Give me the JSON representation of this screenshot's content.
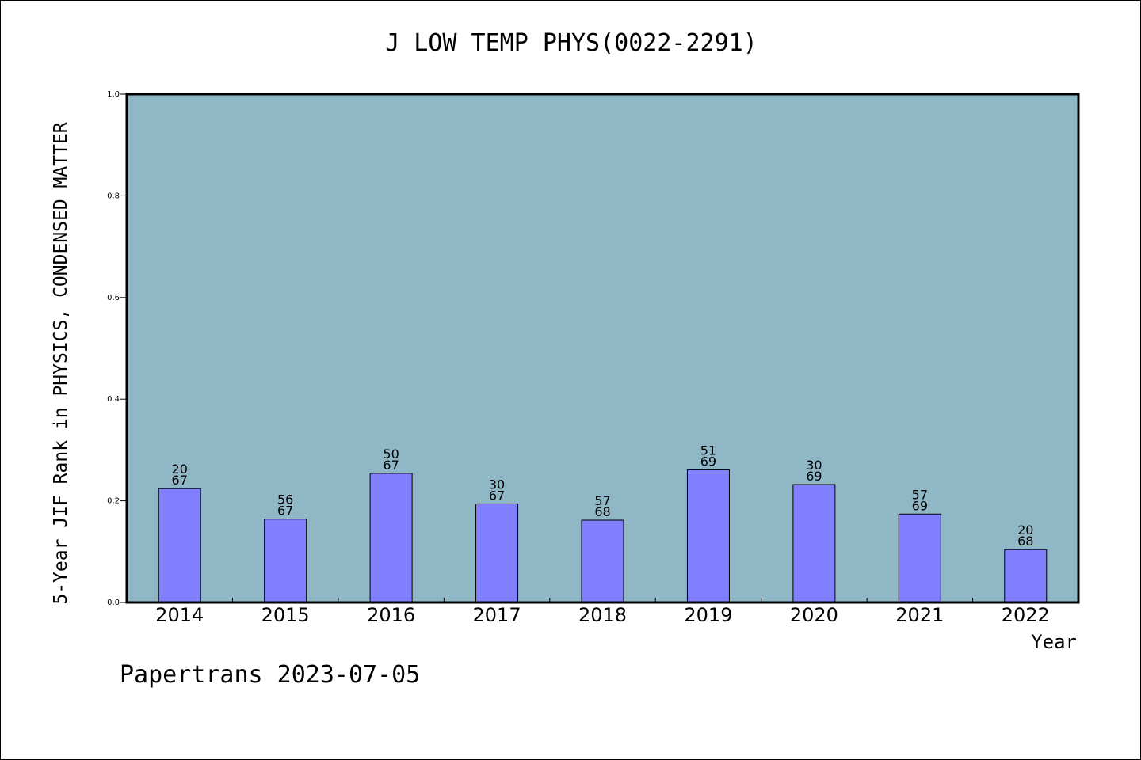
{
  "chart_data": {
    "type": "bar",
    "title": "J LOW TEMP PHYS(0022-2291)",
    "xlabel": "Year",
    "ylabel": "5-Year JIF Rank in PHYSICS, CONDENSED MATTER",
    "categories": [
      "2014",
      "2015",
      "2016",
      "2017",
      "2018",
      "2019",
      "2020",
      "2021",
      "2022"
    ],
    "values": [
      0.224,
      0.164,
      0.254,
      0.194,
      0.162,
      0.261,
      0.232,
      0.174,
      0.104
    ],
    "rank_labels": [
      {
        "rank": "20",
        "total": "67"
      },
      {
        "rank": "56",
        "total": "67"
      },
      {
        "rank": "50",
        "total": "67"
      },
      {
        "rank": "30",
        "total": "67"
      },
      {
        "rank": "57",
        "total": "68"
      },
      {
        "rank": "51",
        "total": "69"
      },
      {
        "rank": "30",
        "total": "69"
      },
      {
        "rank": "57",
        "total": "69"
      },
      {
        "rank": "20",
        "total": "68"
      }
    ],
    "ylim": [
      0,
      1.0
    ],
    "yticks": [
      "0.0",
      "0.2",
      "0.4",
      "0.6",
      "0.8",
      "1.0"
    ],
    "grid": false,
    "colors": {
      "plot_background": "#8fb7c6",
      "bar_fill": "#8080ff",
      "bar_stroke": "#000000"
    }
  },
  "footer": "Papertrans 2023-07-05"
}
